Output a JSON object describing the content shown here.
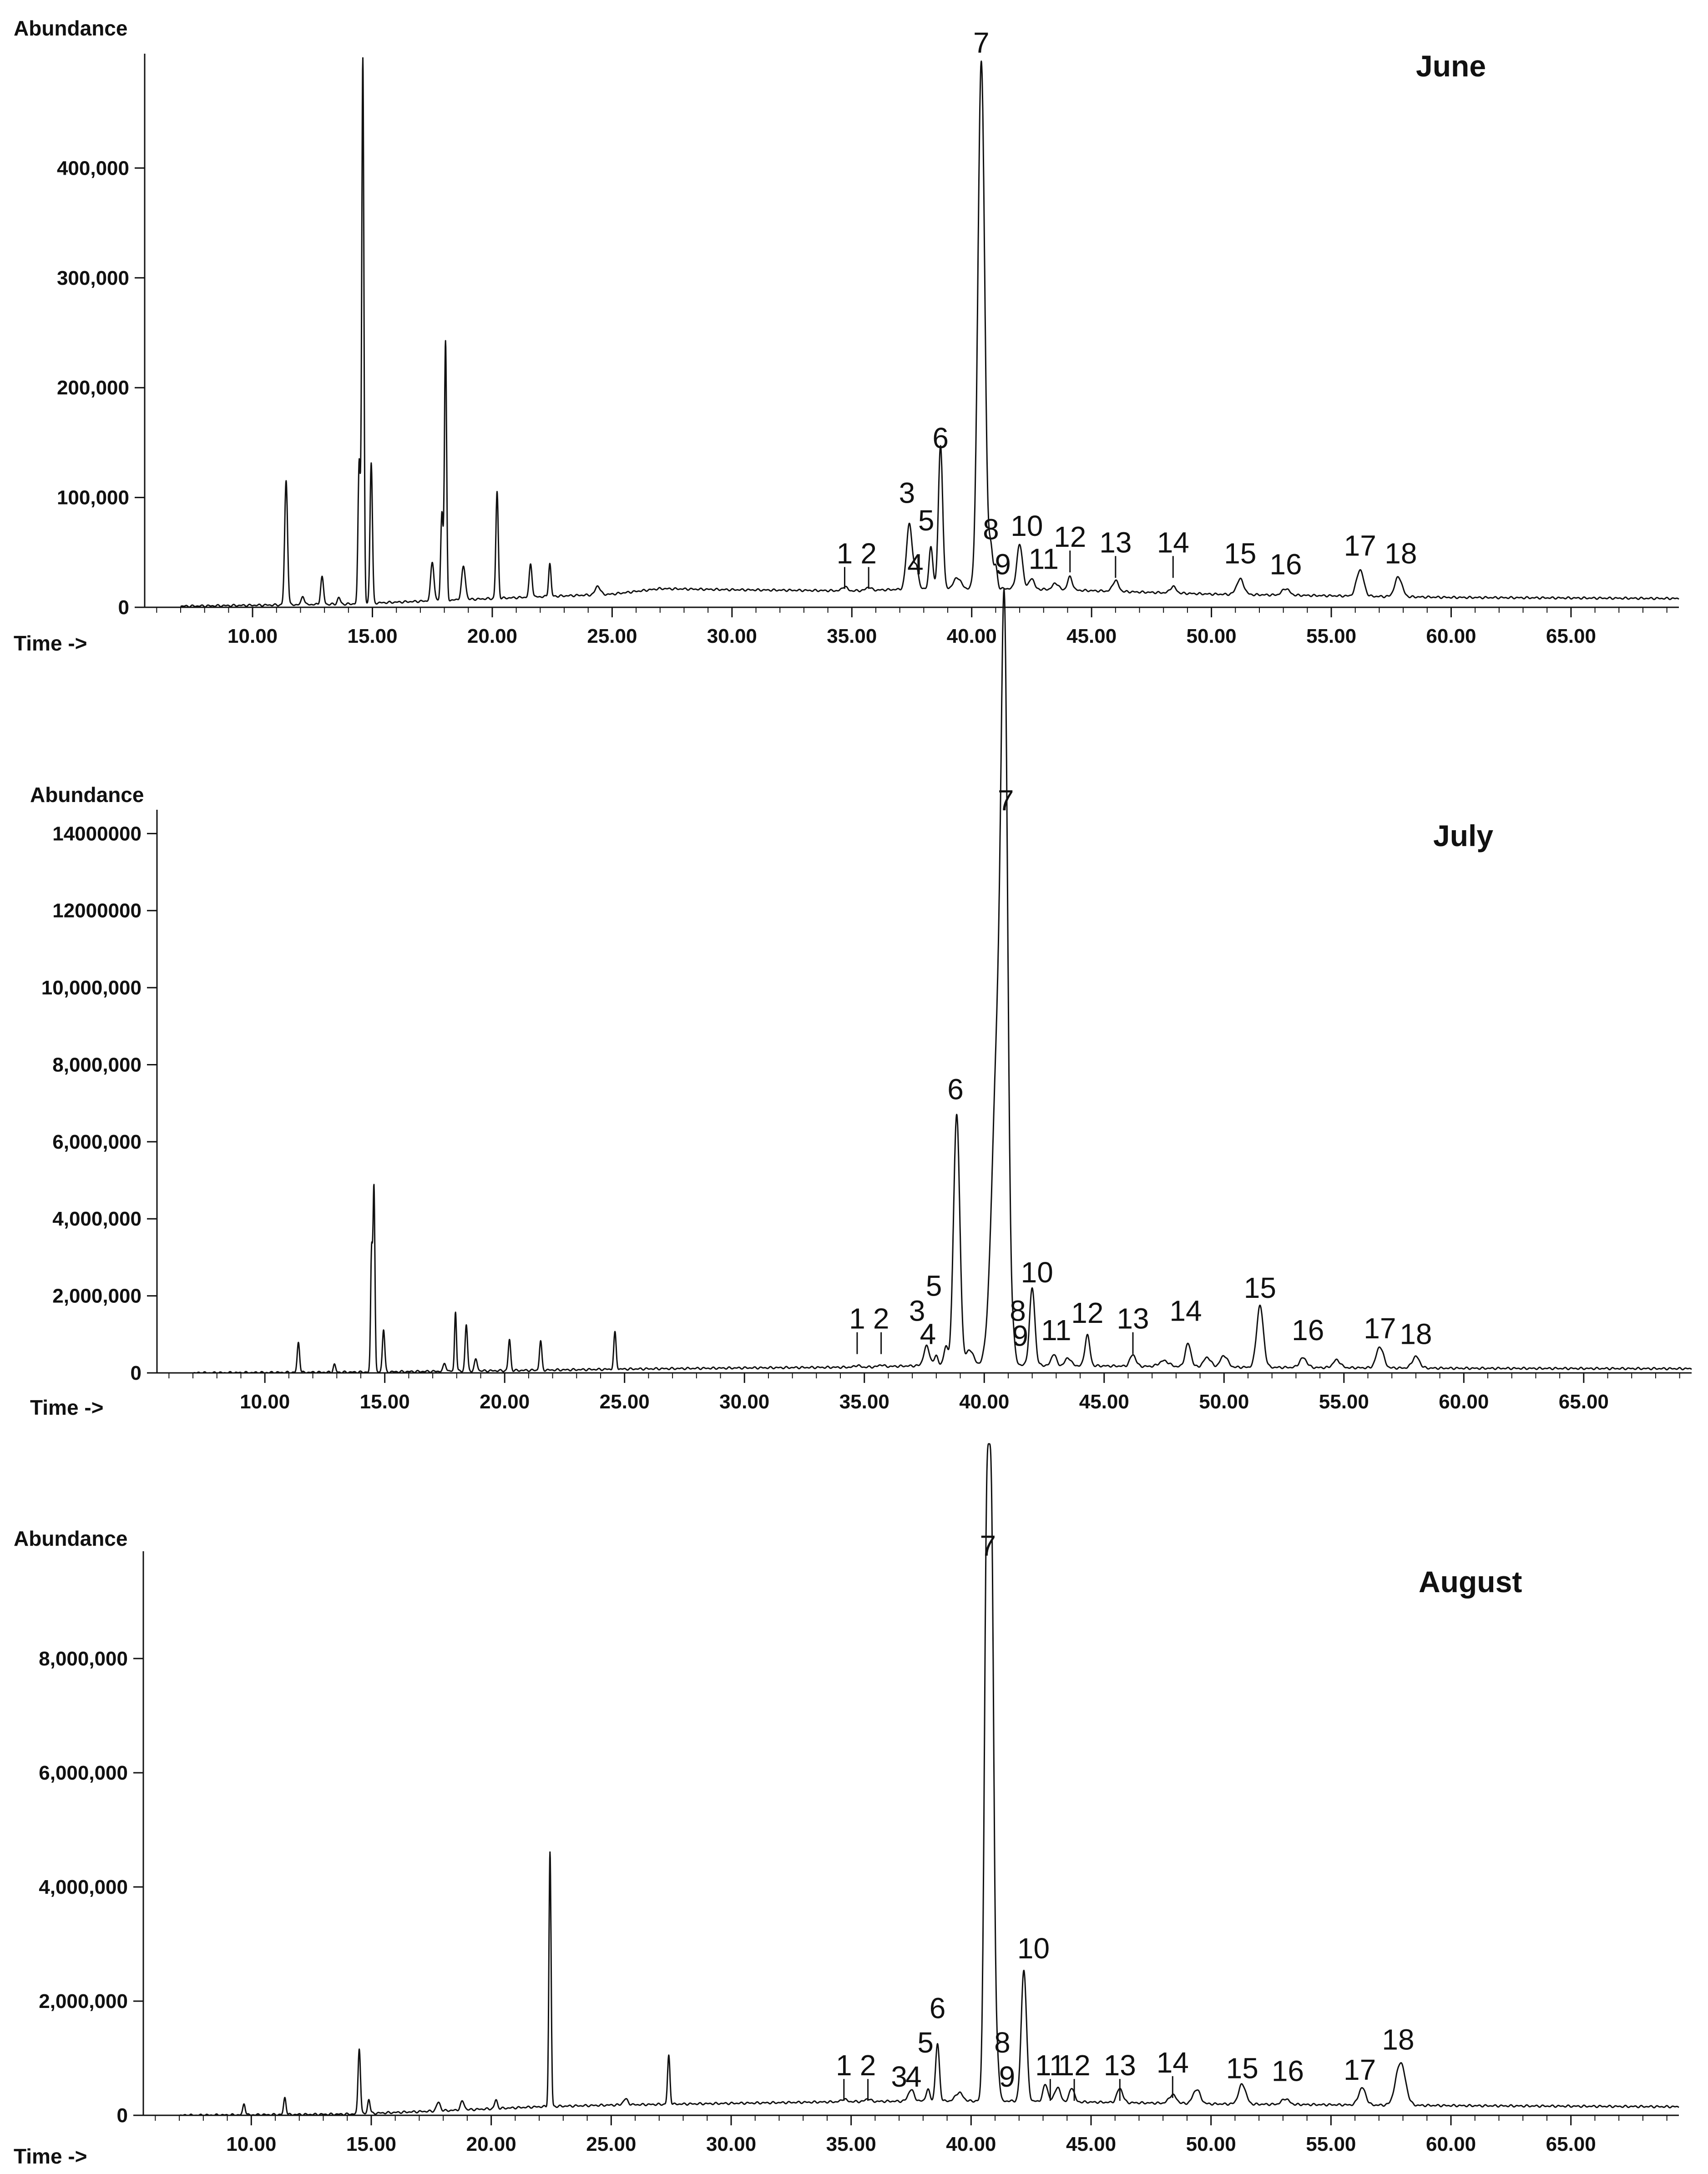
{
  "chart_data": [
    {
      "type": "line",
      "title": "June",
      "ylabel": "Abundance",
      "xlabel": "Time ->",
      "xlim": [
        5.5,
        69.5
      ],
      "ylim": [
        0,
        500000
      ],
      "x_ticks": [
        10,
        15,
        20,
        25,
        30,
        35,
        40,
        45,
        50,
        55,
        60,
        65
      ],
      "x_tick_labels": [
        "10.00",
        "15.00",
        "20.00",
        "25.00",
        "30.00",
        "35.00",
        "40.00",
        "45.00",
        "50.00",
        "55.00",
        "60.00",
        "65.00"
      ],
      "y_ticks": [
        0,
        100000,
        200000,
        300000,
        400000
      ],
      "y_tick_labels": [
        "0",
        "100,000",
        "200,000",
        "300,000",
        "400,000"
      ],
      "baseline": [
        [
          7.0,
          1000
        ],
        [
          14.0,
          3000
        ],
        [
          20.0,
          8000
        ],
        [
          25.0,
          12000
        ],
        [
          27.0,
          17000
        ],
        [
          30.0,
          16000
        ],
        [
          35.0,
          15000
        ],
        [
          38.0,
          17000
        ],
        [
          42.0,
          17000
        ],
        [
          50.0,
          12000
        ],
        [
          60.0,
          9000
        ],
        [
          69.5,
          8000
        ]
      ],
      "peaks": [
        {
          "x": 11.4,
          "y": 113000,
          "w": 0.06
        },
        {
          "x": 12.1,
          "y": 8000,
          "w": 0.06
        },
        {
          "x": 12.9,
          "y": 25000,
          "w": 0.06
        },
        {
          "x": 13.6,
          "y": 6000,
          "w": 0.06
        },
        {
          "x": 14.45,
          "y": 130000,
          "w": 0.05
        },
        {
          "x": 14.6,
          "y": 495000,
          "w": 0.045
        },
        {
          "x": 14.95,
          "y": 128000,
          "w": 0.05
        },
        {
          "x": 17.5,
          "y": 35000,
          "w": 0.07
        },
        {
          "x": 17.9,
          "y": 80000,
          "w": 0.05
        },
        {
          "x": 18.05,
          "y": 235000,
          "w": 0.045
        },
        {
          "x": 18.8,
          "y": 30000,
          "w": 0.08
        },
        {
          "x": 20.2,
          "y": 97000,
          "w": 0.05
        },
        {
          "x": 21.6,
          "y": 30000,
          "w": 0.06
        },
        {
          "x": 22.4,
          "y": 30000,
          "w": 0.05
        },
        {
          "x": 24.4,
          "y": 8000,
          "w": 0.1
        },
        {
          "x": 34.7,
          "y": 4000,
          "w": 0.1
        },
        {
          "x": 35.7,
          "y": 3000,
          "w": 0.1
        },
        {
          "x": 37.4,
          "y": 60000,
          "w": 0.12
        },
        {
          "x": 37.7,
          "y": 20000,
          "w": 0.08
        },
        {
          "x": 38.3,
          "y": 38000,
          "w": 0.08
        },
        {
          "x": 38.7,
          "y": 130000,
          "w": 0.09
        },
        {
          "x": 39.4,
          "y": 10000,
          "w": 0.15
        },
        {
          "x": 40.4,
          "y": 480000,
          "w": 0.14
        },
        {
          "x": 40.8,
          "y": 35000,
          "w": 0.08
        },
        {
          "x": 41.0,
          "y": 20000,
          "w": 0.07
        },
        {
          "x": 42.0,
          "y": 40000,
          "w": 0.12
        },
        {
          "x": 42.5,
          "y": 10000,
          "w": 0.1
        },
        {
          "x": 43.5,
          "y": 6000,
          "w": 0.12
        },
        {
          "x": 44.1,
          "y": 12000,
          "w": 0.1
        },
        {
          "x": 46.0,
          "y": 10000,
          "w": 0.12
        },
        {
          "x": 48.4,
          "y": 6000,
          "w": 0.12
        },
        {
          "x": 51.2,
          "y": 14000,
          "w": 0.15
        },
        {
          "x": 53.1,
          "y": 6000,
          "w": 0.15
        },
        {
          "x": 56.2,
          "y": 24000,
          "w": 0.15
        },
        {
          "x": 57.8,
          "y": 18000,
          "w": 0.15
        }
      ],
      "peak_labels": [
        {
          "text": "1",
          "x": 34.7,
          "y": 40000,
          "tick": true
        },
        {
          "text": "2",
          "x": 35.7,
          "y": 40000,
          "tick": true
        },
        {
          "text": "3",
          "x": 37.3,
          "y": 95000,
          "tick": false
        },
        {
          "text": "4",
          "x": 37.65,
          "y": 30000,
          "tick": false
        },
        {
          "text": "5",
          "x": 38.1,
          "y": 70000,
          "tick": false
        },
        {
          "text": "6",
          "x": 38.7,
          "y": 145000,
          "tick": false
        },
        {
          "text": "7",
          "x": 40.4,
          "y": 505000,
          "tick": false
        },
        {
          "text": "8",
          "x": 40.8,
          "y": 62000,
          "tick": false
        },
        {
          "text": "9",
          "x": 41.3,
          "y": 30000,
          "tick": false
        },
        {
          "text": "10",
          "x": 42.3,
          "y": 65000,
          "tick": false
        },
        {
          "text": "11",
          "x": 43.0,
          "y": 35000,
          "tick": false
        },
        {
          "text": "12",
          "x": 44.1,
          "y": 55000,
          "tick": true
        },
        {
          "text": "13",
          "x": 46.0,
          "y": 50000,
          "tick": true
        },
        {
          "text": "14",
          "x": 48.4,
          "y": 50000,
          "tick": true
        },
        {
          "text": "15",
          "x": 51.2,
          "y": 40000,
          "tick": false
        },
        {
          "text": "16",
          "x": 53.1,
          "y": 30000,
          "tick": false
        },
        {
          "text": "17",
          "x": 56.2,
          "y": 47000,
          "tick": false
        },
        {
          "text": "18",
          "x": 57.9,
          "y": 40000,
          "tick": false
        }
      ]
    },
    {
      "type": "line",
      "title": "July",
      "ylabel": "Abundance",
      "xlabel": "Time ->",
      "xlim": [
        5.5,
        69.5
      ],
      "ylim": [
        0,
        14500000
      ],
      "x_ticks": [
        10,
        15,
        20,
        25,
        30,
        35,
        40,
        45,
        50,
        55,
        60,
        65
      ],
      "x_tick_labels": [
        "10.00",
        "15.00",
        "20.00",
        "25.00",
        "30.00",
        "35.00",
        "40.00",
        "45.00",
        "50.00",
        "55.00",
        "60.00",
        "65.00"
      ],
      "y_ticks": [
        0,
        2000000,
        4000000,
        6000000,
        8000000,
        10000000,
        12000000,
        14000000
      ],
      "y_tick_labels": [
        "0",
        "2,000,000",
        "4,000,000",
        "6,000,000",
        "8,000,000",
        "10,000,000",
        "12000000",
        "14000000"
      ],
      "baseline": [
        [
          7.0,
          0
        ],
        [
          14.0,
          20000
        ],
        [
          20.0,
          60000
        ],
        [
          25.0,
          100000
        ],
        [
          30.0,
          130000
        ],
        [
          35.0,
          150000
        ],
        [
          38.0,
          200000
        ],
        [
          42.0,
          200000
        ],
        [
          50.0,
          150000
        ],
        [
          60.0,
          120000
        ],
        [
          69.5,
          110000
        ]
      ],
      "peaks": [
        {
          "x": 11.4,
          "y": 780000,
          "w": 0.05
        },
        {
          "x": 12.9,
          "y": 200000,
          "w": 0.05
        },
        {
          "x": 14.45,
          "y": 3100000,
          "w": 0.04
        },
        {
          "x": 14.55,
          "y": 4750000,
          "w": 0.04
        },
        {
          "x": 14.95,
          "y": 1100000,
          "w": 0.05
        },
        {
          "x": 17.5,
          "y": 200000,
          "w": 0.06
        },
        {
          "x": 17.95,
          "y": 1550000,
          "w": 0.04
        },
        {
          "x": 18.4,
          "y": 1200000,
          "w": 0.05
        },
        {
          "x": 18.8,
          "y": 300000,
          "w": 0.06
        },
        {
          "x": 20.2,
          "y": 800000,
          "w": 0.05
        },
        {
          "x": 21.5,
          "y": 750000,
          "w": 0.05
        },
        {
          "x": 24.6,
          "y": 950000,
          "w": 0.05
        },
        {
          "x": 34.7,
          "y": 50000,
          "w": 0.1
        },
        {
          "x": 35.7,
          "y": 50000,
          "w": 0.1
        },
        {
          "x": 37.6,
          "y": 500000,
          "w": 0.12
        },
        {
          "x": 38.0,
          "y": 250000,
          "w": 0.08
        },
        {
          "x": 38.4,
          "y": 500000,
          "w": 0.08
        },
        {
          "x": 38.85,
          "y": 6500000,
          "w": 0.13
        },
        {
          "x": 39.4,
          "y": 400000,
          "w": 0.15
        },
        {
          "x": 40.6,
          "y": 9000000,
          "w": 0.25
        },
        {
          "x": 40.85,
          "y": 14400000,
          "w": 0.13
        },
        {
          "x": 41.2,
          "y": 400000,
          "w": 0.08
        },
        {
          "x": 42.0,
          "y": 2000000,
          "w": 0.11
        },
        {
          "x": 42.9,
          "y": 300000,
          "w": 0.1
        },
        {
          "x": 43.5,
          "y": 200000,
          "w": 0.12
        },
        {
          "x": 44.3,
          "y": 800000,
          "w": 0.1
        },
        {
          "x": 46.2,
          "y": 300000,
          "w": 0.12
        },
        {
          "x": 47.5,
          "y": 150000,
          "w": 0.2
        },
        {
          "x": 48.5,
          "y": 600000,
          "w": 0.12
        },
        {
          "x": 49.3,
          "y": 250000,
          "w": 0.15
        },
        {
          "x": 50.0,
          "y": 300000,
          "w": 0.15
        },
        {
          "x": 51.5,
          "y": 1600000,
          "w": 0.14
        },
        {
          "x": 53.3,
          "y": 250000,
          "w": 0.15
        },
        {
          "x": 54.7,
          "y": 200000,
          "w": 0.15
        },
        {
          "x": 56.5,
          "y": 550000,
          "w": 0.15
        },
        {
          "x": 58.0,
          "y": 300000,
          "w": 0.15
        }
      ],
      "peak_labels": [
        {
          "text": "1",
          "x": 34.7,
          "y": 1150000,
          "tick": true
        },
        {
          "text": "2",
          "x": 35.7,
          "y": 1150000,
          "tick": true
        },
        {
          "text": "3",
          "x": 37.2,
          "y": 1350000,
          "tick": false
        },
        {
          "text": "4",
          "x": 37.65,
          "y": 750000,
          "tick": false
        },
        {
          "text": "5",
          "x": 37.9,
          "y": 2000000,
          "tick": false
        },
        {
          "text": "6",
          "x": 38.8,
          "y": 7100000,
          "tick": false
        },
        {
          "text": "7",
          "x": 40.9,
          "y": 14600000,
          "tick": false
        },
        {
          "text": "8",
          "x": 41.4,
          "y": 1350000,
          "tick": false
        },
        {
          "text": "9",
          "x": 41.5,
          "y": 700000,
          "tick": false
        },
        {
          "text": "10",
          "x": 42.2,
          "y": 2350000,
          "tick": false
        },
        {
          "text": "11",
          "x": 43.0,
          "y": 850000,
          "tick": false
        },
        {
          "text": "12",
          "x": 44.3,
          "y": 1300000,
          "tick": false
        },
        {
          "text": "13",
          "x": 46.2,
          "y": 1150000,
          "tick": true
        },
        {
          "text": "14",
          "x": 48.4,
          "y": 1350000,
          "tick": false
        },
        {
          "text": "15",
          "x": 51.5,
          "y": 1950000,
          "tick": false
        },
        {
          "text": "16",
          "x": 53.5,
          "y": 850000,
          "tick": false
        },
        {
          "text": "17",
          "x": 56.5,
          "y": 900000,
          "tick": false
        },
        {
          "text": "18",
          "x": 58.0,
          "y": 750000,
          "tick": false
        }
      ]
    },
    {
      "type": "line",
      "title": "August",
      "ylabel": "Abundance",
      "xlabel": "Time ->",
      "xlim": [
        5.5,
        69.5
      ],
      "ylim": [
        0,
        9800000
      ],
      "x_ticks": [
        10,
        15,
        20,
        25,
        30,
        35,
        40,
        45,
        50,
        55,
        60,
        65
      ],
      "x_tick_labels": [
        "10.00",
        "15.00",
        "20.00",
        "25.00",
        "30.00",
        "35.00",
        "40.00",
        "45.00",
        "50.00",
        "55.00",
        "60.00",
        "65.00"
      ],
      "y_ticks": [
        0,
        2000000,
        4000000,
        6000000,
        8000000
      ],
      "y_tick_labels": [
        "0",
        "2,000,000",
        "4,000,000",
        "6,000,000",
        "8,000,000"
      ],
      "baseline": [
        [
          7.0,
          0
        ],
        [
          14.0,
          20000
        ],
        [
          18.0,
          80000
        ],
        [
          22.0,
          150000
        ],
        [
          25.0,
          180000
        ],
        [
          30.0,
          210000
        ],
        [
          35.0,
          240000
        ],
        [
          38.0,
          250000
        ],
        [
          42.0,
          250000
        ],
        [
          50.0,
          200000
        ],
        [
          60.0,
          170000
        ],
        [
          69.5,
          150000
        ]
      ],
      "peaks": [
        {
          "x": 9.7,
          "y": 200000,
          "w": 0.05
        },
        {
          "x": 11.4,
          "y": 300000,
          "w": 0.05
        },
        {
          "x": 14.5,
          "y": 1150000,
          "w": 0.05
        },
        {
          "x": 14.9,
          "y": 250000,
          "w": 0.05
        },
        {
          "x": 17.8,
          "y": 150000,
          "w": 0.08
        },
        {
          "x": 18.8,
          "y": 150000,
          "w": 0.08
        },
        {
          "x": 20.2,
          "y": 150000,
          "w": 0.06
        },
        {
          "x": 22.45,
          "y": 4450000,
          "w": 0.045
        },
        {
          "x": 25.6,
          "y": 100000,
          "w": 0.1
        },
        {
          "x": 27.4,
          "y": 850000,
          "w": 0.05
        },
        {
          "x": 34.7,
          "y": 50000,
          "w": 0.1
        },
        {
          "x": 35.7,
          "y": 50000,
          "w": 0.1
        },
        {
          "x": 37.5,
          "y": 200000,
          "w": 0.12
        },
        {
          "x": 38.2,
          "y": 200000,
          "w": 0.08
        },
        {
          "x": 38.6,
          "y": 1000000,
          "w": 0.08
        },
        {
          "x": 39.5,
          "y": 150000,
          "w": 0.15
        },
        {
          "x": 40.65,
          "y": 9500000,
          "w": 0.1
        },
        {
          "x": 40.85,
          "y": 9500000,
          "w": 0.1
        },
        {
          "x": 41.1,
          "y": 600000,
          "w": 0.08
        },
        {
          "x": 42.2,
          "y": 2300000,
          "w": 0.11
        },
        {
          "x": 43.1,
          "y": 300000,
          "w": 0.1
        },
        {
          "x": 43.6,
          "y": 250000,
          "w": 0.12
        },
        {
          "x": 44.2,
          "y": 250000,
          "w": 0.1
        },
        {
          "x": 46.2,
          "y": 250000,
          "w": 0.12
        },
        {
          "x": 48.4,
          "y": 150000,
          "w": 0.15
        },
        {
          "x": 49.4,
          "y": 250000,
          "w": 0.15
        },
        {
          "x": 51.3,
          "y": 350000,
          "w": 0.15
        },
        {
          "x": 53.1,
          "y": 100000,
          "w": 0.15
        },
        {
          "x": 56.3,
          "y": 300000,
          "w": 0.15
        },
        {
          "x": 57.9,
          "y": 750000,
          "w": 0.2
        }
      ],
      "peak_labels": [
        {
          "text": "1",
          "x": 34.7,
          "y": 700000,
          "tick": true
        },
        {
          "text": "2",
          "x": 35.7,
          "y": 700000,
          "tick": true
        },
        {
          "text": "3",
          "x": 37.0,
          "y": 500000,
          "tick": false
        },
        {
          "text": "4",
          "x": 37.6,
          "y": 500000,
          "tick": false
        },
        {
          "text": "5",
          "x": 38.1,
          "y": 1100000,
          "tick": false
        },
        {
          "text": "6",
          "x": 38.6,
          "y": 1700000,
          "tick": false
        },
        {
          "text": "7",
          "x": 40.7,
          "y": 9800000,
          "tick": false
        },
        {
          "text": "8",
          "x": 41.3,
          "y": 1100000,
          "tick": false
        },
        {
          "text": "9",
          "x": 41.5,
          "y": 500000,
          "tick": false
        },
        {
          "text": "10",
          "x": 42.6,
          "y": 2750000,
          "tick": false
        },
        {
          "text": "11",
          "x": 43.3,
          "y": 700000,
          "tick": true
        },
        {
          "text": "12",
          "x": 44.3,
          "y": 700000,
          "tick": true
        },
        {
          "text": "13",
          "x": 46.2,
          "y": 700000,
          "tick": true
        },
        {
          "text": "14",
          "x": 48.4,
          "y": 750000,
          "tick": true
        },
        {
          "text": "15",
          "x": 51.3,
          "y": 650000,
          "tick": false
        },
        {
          "text": "16",
          "x": 53.2,
          "y": 600000,
          "tick": false
        },
        {
          "text": "17",
          "x": 56.2,
          "y": 620000,
          "tick": false
        },
        {
          "text": "18",
          "x": 57.8,
          "y": 1150000,
          "tick": false
        }
      ]
    }
  ]
}
